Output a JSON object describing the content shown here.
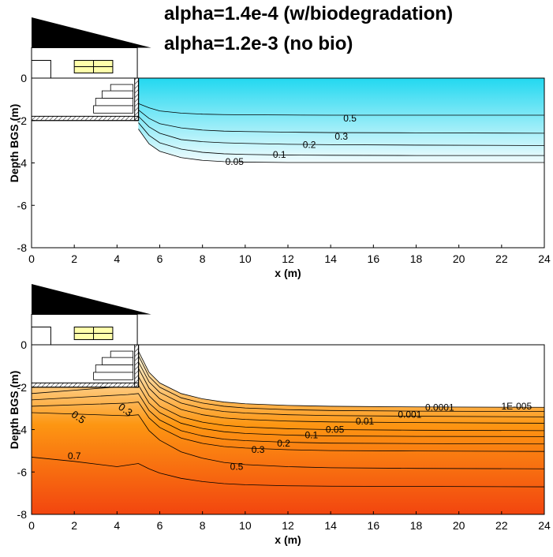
{
  "titles": {
    "line1": "alpha=1.4e-4 (w/biodegradation)",
    "line2": "alpha=1.2e-3 (no bio)"
  },
  "colors": {
    "top_fill_high": "#22d8f0",
    "top_fill_low": "#f2fcfe",
    "bottom_fill_high": "#f2450f",
    "bottom_fill_mid": "#fd9612",
    "bottom_fill_low": "#fefbe3",
    "house_roof": "#000000",
    "window": "#ffffaa"
  },
  "chart_data": [
    {
      "type": "contour",
      "xlabel": "x (m)",
      "ylabel": "Depth BGS (m)",
      "xlim": [
        0,
        24
      ],
      "ylim": [
        -8,
        0
      ],
      "x_ticks": [
        "0",
        "2",
        "4",
        "6",
        "8",
        "10",
        "12",
        "14",
        "16",
        "18",
        "20",
        "22",
        "24"
      ],
      "y_ticks": [
        "0",
        "-2",
        "-4",
        "-6",
        "-8"
      ],
      "x": [
        5,
        5.5,
        6,
        7,
        8,
        9,
        10,
        12,
        14,
        18,
        24
      ],
      "contours": [
        {
          "level": "0.5",
          "label": "0.5",
          "label_x": 14.9,
          "label_y": -2.05,
          "y": [
            -1.2,
            -1.4,
            -1.55,
            -1.65,
            -1.7,
            -1.72,
            -1.73,
            -1.74,
            -1.75,
            -1.75,
            -1.75
          ]
        },
        {
          "level": "0.3",
          "label": "0.3",
          "label_x": 14.5,
          "label_y": -2.9,
          "y": [
            -1.5,
            -1.9,
            -2.15,
            -2.35,
            -2.45,
            -2.5,
            -2.52,
            -2.55,
            -2.57,
            -2.58,
            -2.6
          ]
        },
        {
          "level": "0.2",
          "label": "0.2",
          "label_x": 13.0,
          "label_y": -3.3,
          "y": [
            -1.8,
            -2.3,
            -2.6,
            -2.9,
            -3.0,
            -3.05,
            -3.08,
            -3.12,
            -3.14,
            -3.16,
            -3.18
          ]
        },
        {
          "level": "0.1",
          "label": "0.1",
          "label_x": 11.6,
          "label_y": -3.75,
          "y": [
            -2.1,
            -2.7,
            -3.05,
            -3.35,
            -3.5,
            -3.57,
            -3.6,
            -3.63,
            -3.64,
            -3.65,
            -3.65
          ]
        },
        {
          "level": "0.05",
          "label": "0.05",
          "label_x": 9.5,
          "label_y": -4.1,
          "y": [
            -2.4,
            -3.1,
            -3.45,
            -3.75,
            -3.88,
            -3.94,
            -3.96,
            -3.98,
            -3.98,
            -3.98,
            -3.98
          ]
        }
      ]
    },
    {
      "type": "contour",
      "xlabel": "x (m)",
      "ylabel": "Depth BGS (m)",
      "xlim": [
        0,
        24
      ],
      "ylim": [
        -8,
        0
      ],
      "x_ticks": [
        "0",
        "2",
        "4",
        "6",
        "8",
        "10",
        "12",
        "14",
        "16",
        "18",
        "20",
        "22",
        "24"
      ],
      "y_ticks": [
        "0",
        "-2",
        "-4",
        "-6",
        "-8"
      ],
      "x": [
        5,
        5.5,
        6,
        7,
        8,
        9,
        10,
        12,
        14,
        18,
        24
      ],
      "contours": [
        {
          "level": "1E-005",
          "label": "1E-005",
          "label_x": 22.7,
          "label_y": -3.05,
          "y": [
            -0.3,
            -1.3,
            -1.8,
            -2.3,
            -2.55,
            -2.7,
            -2.78,
            -2.86,
            -2.9,
            -2.93,
            -2.95
          ]
        },
        {
          "level": "0.0001",
          "label": "0.0001",
          "label_x": 19.1,
          "label_y": -3.1,
          "y": [
            -0.5,
            -1.5,
            -2.0,
            -2.5,
            -2.75,
            -2.9,
            -2.98,
            -3.06,
            -3.1,
            -3.13,
            -3.15
          ]
        },
        {
          "level": "0.001",
          "label": "0.001",
          "label_x": 17.7,
          "label_y": -3.45,
          "y": [
            -0.8,
            -1.75,
            -2.25,
            -2.75,
            -3.0,
            -3.15,
            -3.22,
            -3.3,
            -3.34,
            -3.37,
            -3.4
          ]
        },
        {
          "level": "0.01",
          "label": "0.01",
          "label_x": 15.6,
          "label_y": -3.75,
          "y": [
            -1.1,
            -2.05,
            -2.55,
            -3.05,
            -3.3,
            -3.45,
            -3.52,
            -3.6,
            -3.64,
            -3.67,
            -3.7
          ]
        },
        {
          "level": "0.05",
          "label": "0.05",
          "label_x": 14.2,
          "label_y": -4.15,
          "y": [
            -1.5,
            -2.4,
            -2.9,
            -3.4,
            -3.65,
            -3.8,
            -3.88,
            -3.96,
            -4.0,
            -4.03,
            -4.05
          ]
        },
        {
          "level": "0.1",
          "label": "0.1",
          "label_x": 13.1,
          "label_y": -4.4,
          "y": [
            -1.9,
            -2.75,
            -3.2,
            -3.7,
            -3.95,
            -4.1,
            -4.18,
            -4.26,
            -4.3,
            -4.32,
            -4.33
          ]
        },
        {
          "level": "0.2",
          "label": "0.2",
          "label_x": 11.8,
          "label_y": -4.8,
          "y": [
            -2.3,
            -3.1,
            -3.55,
            -4.05,
            -4.3,
            -4.45,
            -4.52,
            -4.6,
            -4.64,
            -4.66,
            -4.68
          ]
        },
        {
          "level": "0.3",
          "label": "0.3",
          "label_x": 10.6,
          "label_y": -5.1,
          "y": [
            -2.7,
            -3.45,
            -3.9,
            -4.4,
            -4.65,
            -4.8,
            -4.87,
            -4.95,
            -4.99,
            -5.01,
            -5.03
          ]
        },
        {
          "level": "0.5",
          "label": "0.5",
          "label_x": 9.6,
          "label_y": -5.9,
          "y": [
            -3.3,
            -4.05,
            -4.5,
            -5.05,
            -5.35,
            -5.55,
            -5.65,
            -5.75,
            -5.8,
            -5.83,
            -5.85
          ]
        },
        {
          "level": "0.7",
          "label": "0.7",
          "label_x": 2.0,
          "label_y": -5.4,
          "y": [
            -5.6,
            -5.85,
            -6.05,
            -6.3,
            -6.45,
            -6.55,
            -6.6,
            -6.65,
            -6.67,
            -6.68,
            -6.7
          ]
        }
      ],
      "extra_labels": [
        {
          "label": "0.5",
          "label_x": 2.1,
          "label_y": -3.55
        },
        {
          "label": "0.3",
          "label_x": 4.3,
          "label_y": -3.2
        },
        {
          "label": "0.7",
          "label_x": 1.2,
          "label_y": -5.4
        }
      ]
    }
  ]
}
